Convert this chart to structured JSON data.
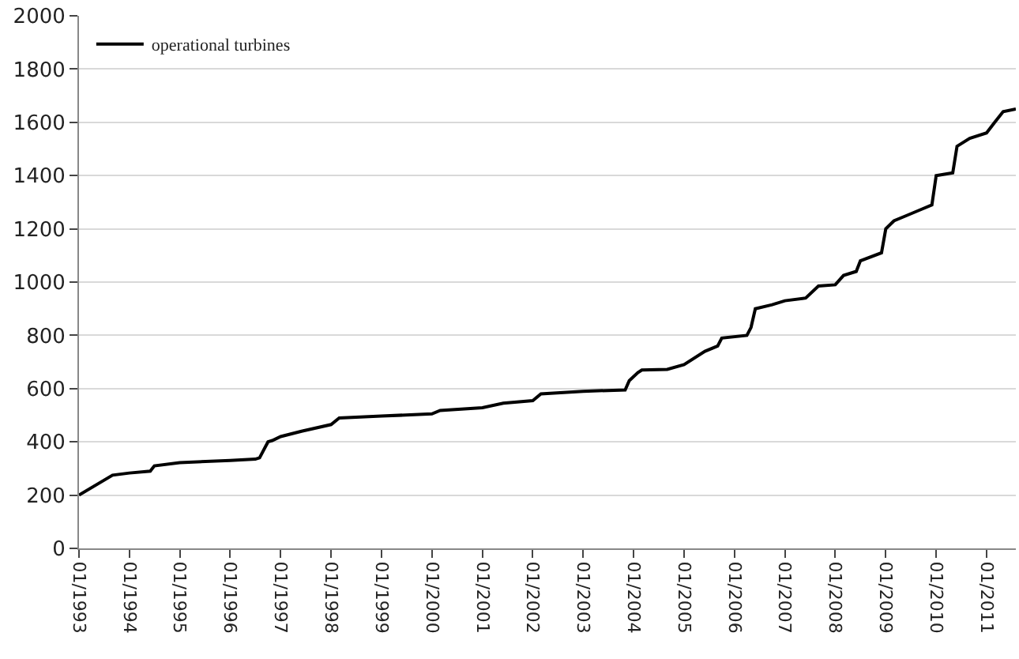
{
  "chart_data": {
    "type": "line",
    "legend": "top left",
    "grid": "y",
    "marker": "none",
    "line_style": "solid",
    "xlim": [
      "1993-01",
      "2011-08"
    ],
    "ylim": [
      0,
      2000
    ],
    "yticks": [
      0,
      200,
      400,
      600,
      800,
      1000,
      1200,
      1400,
      1600,
      1800,
      2000
    ],
    "xticks": [
      {
        "value": "1993-01",
        "label": "01/1993"
      },
      {
        "value": "1994-01",
        "label": "01/1994"
      },
      {
        "value": "1995-01",
        "label": "01/1995"
      },
      {
        "value": "1996-01",
        "label": "01/1996"
      },
      {
        "value": "1997-01",
        "label": "01/1997"
      },
      {
        "value": "1998-01",
        "label": "01/1998"
      },
      {
        "value": "1999-01",
        "label": "01/1999"
      },
      {
        "value": "2000-01",
        "label": "01/2000"
      },
      {
        "value": "2001-01",
        "label": "01/2001"
      },
      {
        "value": "2002-01",
        "label": "01/2002"
      },
      {
        "value": "2003-01",
        "label": "01/2003"
      },
      {
        "value": "2004-01",
        "label": "01/2004"
      },
      {
        "value": "2005-01",
        "label": "01/2005"
      },
      {
        "value": "2006-01",
        "label": "01/2006"
      },
      {
        "value": "2007-01",
        "label": "01/2007"
      },
      {
        "value": "2008-01",
        "label": "01/2008"
      },
      {
        "value": "2009-01",
        "label": "01/2009"
      },
      {
        "value": "2010-01",
        "label": "01/2010"
      },
      {
        "value": "2011-01",
        "label": "01/2011"
      }
    ],
    "x": [
      "1993-01",
      "1993-09",
      "1994-01",
      "1994-06",
      "1994-07",
      "1995-01",
      "1996-01",
      "1996-07",
      "1996-08",
      "1996-10",
      "1996-11",
      "1997-01",
      "1997-06",
      "1998-01",
      "1998-03",
      "1999-01",
      "2000-01",
      "2000-03",
      "2001-01",
      "2001-06",
      "2002-01",
      "2002-03",
      "2003-01",
      "2003-11",
      "2003-12",
      "2004-02",
      "2004-03",
      "2004-09",
      "2005-01",
      "2005-06",
      "2005-09",
      "2005-10",
      "2006-04",
      "2006-05",
      "2006-06",
      "2006-10",
      "2007-01",
      "2007-06",
      "2007-09",
      "2008-01",
      "2008-03",
      "2008-06",
      "2008-07",
      "2008-12",
      "2009-01",
      "2009-03",
      "2009-06",
      "2009-09",
      "2009-12",
      "2010-01",
      "2010-05",
      "2010-06",
      "2010-09",
      "2011-01",
      "2011-03",
      "2011-05",
      "2011-08"
    ],
    "series": [
      {
        "name": "operational turbines",
        "color": "#000000",
        "values": [
          200,
          275,
          283,
          290,
          310,
          322,
          330,
          335,
          340,
          400,
          405,
          420,
          440,
          465,
          490,
          497,
          505,
          518,
          528,
          545,
          555,
          580,
          590,
          595,
          630,
          660,
          670,
          672,
          690,
          740,
          760,
          790,
          800,
          830,
          900,
          915,
          930,
          940,
          985,
          990,
          1025,
          1040,
          1080,
          1110,
          1200,
          1230,
          1250,
          1270,
          1290,
          1400,
          1410,
          1510,
          1540,
          1560,
          1600,
          1640,
          1650
        ]
      }
    ]
  }
}
